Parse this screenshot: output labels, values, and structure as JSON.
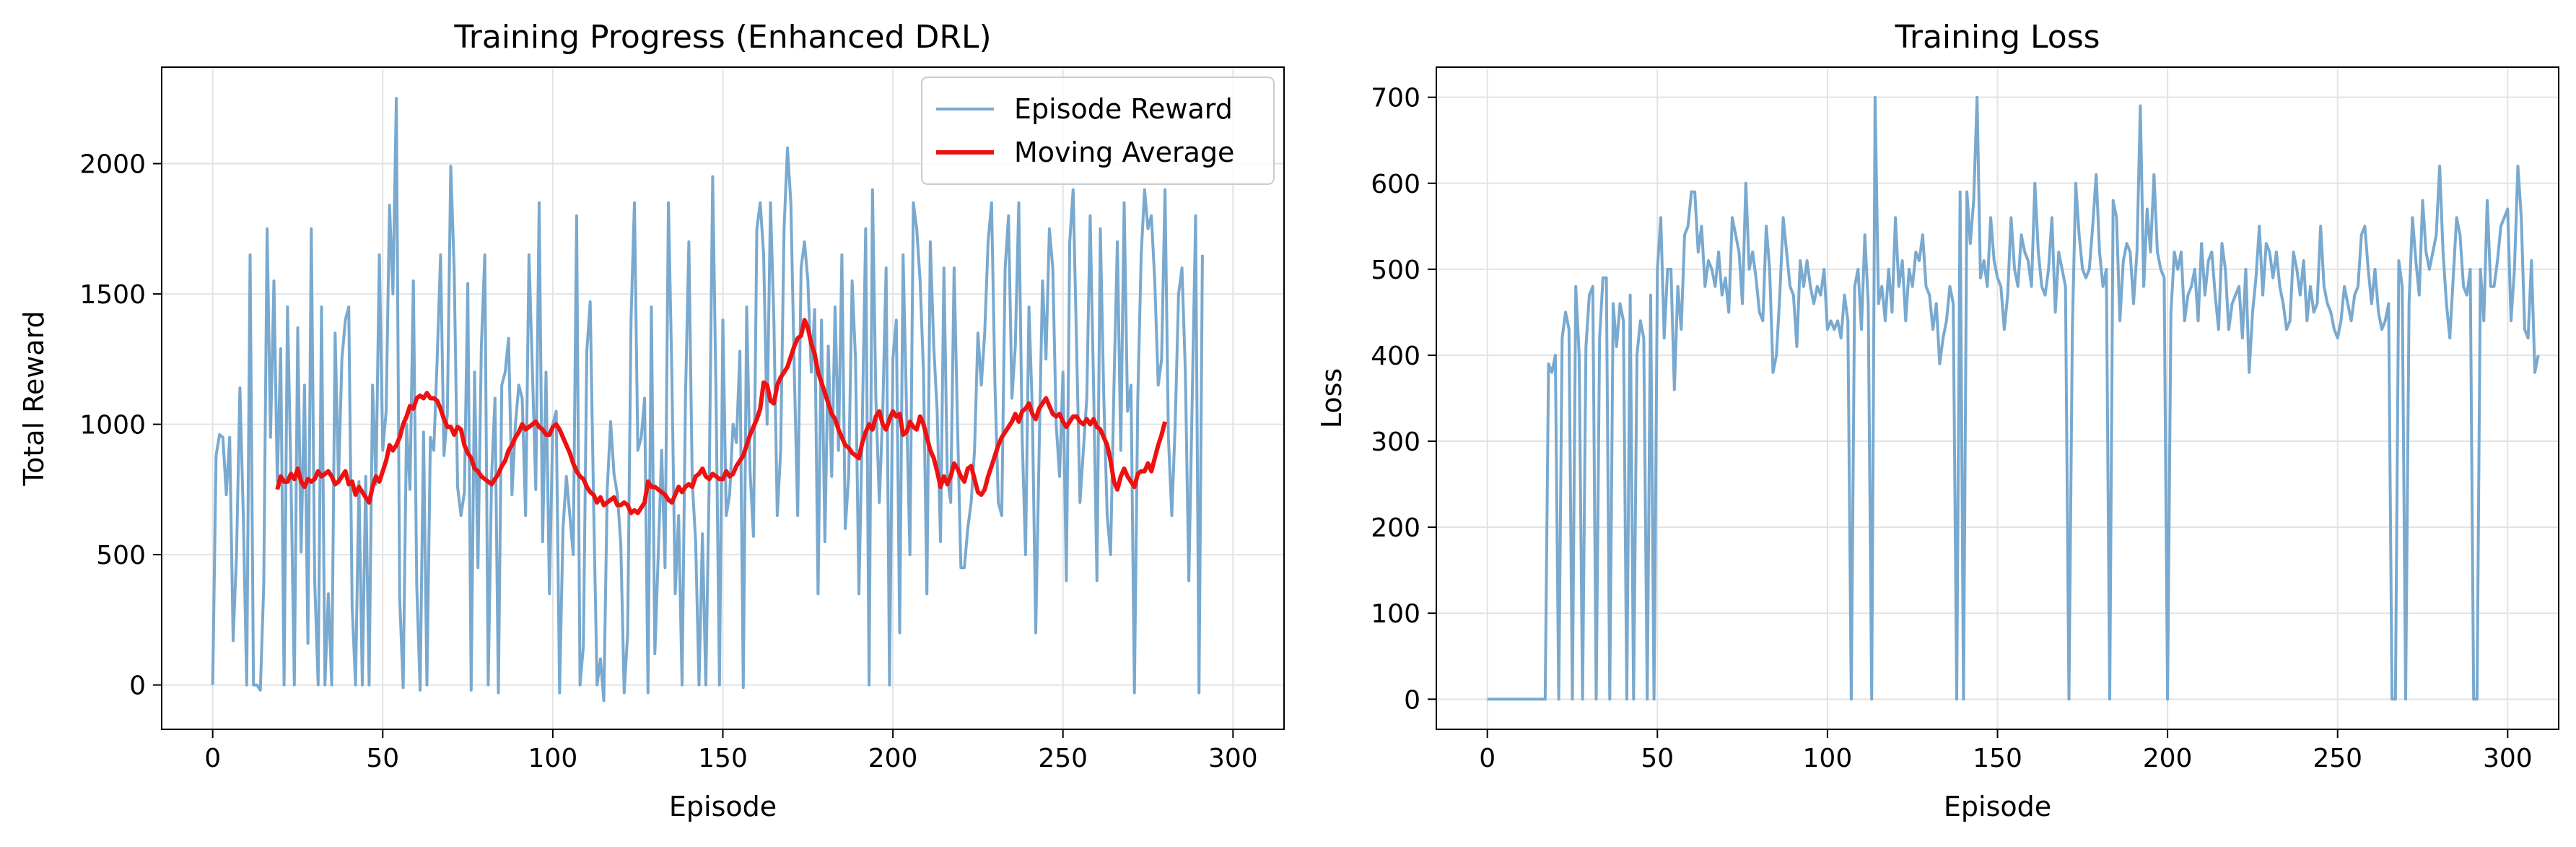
{
  "chart_data": [
    {
      "type": "line",
      "title": "Training Progress (Enhanced DRL)",
      "xlabel": "Episode",
      "ylabel": "Total Reward",
      "xlim": [
        -15,
        315
      ],
      "ylim": [
        -170,
        2370
      ],
      "xticks": [
        0,
        50,
        100,
        150,
        200,
        250,
        300
      ],
      "yticks": [
        0,
        500,
        1000,
        1500,
        2000
      ],
      "grid": true,
      "legend": "top-right",
      "series": [
        {
          "name": "Episode Reward",
          "color": "#79a9cf",
          "x_start": 0,
          "values": [
            0,
            880,
            960,
            950,
            730,
            950,
            170,
            500,
            1140,
            650,
            0,
            1650,
            0,
            0,
            -20,
            380,
            1750,
            950,
            1550,
            780,
            1290,
            0,
            1450,
            800,
            0,
            1370,
            510,
            1150,
            160,
            1750,
            400,
            0,
            1450,
            0,
            350,
            0,
            1350,
            780,
            1250,
            1400,
            1450,
            300,
            0,
            780,
            0,
            800,
            0,
            1150,
            770,
            1650,
            900,
            1050,
            1840,
            1500,
            2250,
            330,
            -10,
            1000,
            750,
            1550,
            380,
            -20,
            970,
            0,
            950,
            900,
            1250,
            1650,
            880,
            1040,
            1990,
            1600,
            760,
            650,
            740,
            1540,
            -20,
            1200,
            450,
            1300,
            1650,
            0,
            800,
            1100,
            -30,
            1150,
            1200,
            1330,
            730,
            1000,
            1150,
            1100,
            650,
            1650,
            1210,
            750,
            1850,
            550,
            1200,
            350,
            1000,
            1050,
            -30,
            600,
            800,
            650,
            500,
            1800,
            0,
            150,
            1280,
            1470,
            700,
            0,
            100,
            -60,
            750,
            1010,
            810,
            730,
            540,
            -30,
            200,
            1400,
            1850,
            900,
            950,
            1100,
            -30,
            1450,
            120,
            500,
            900,
            450,
            1850,
            1200,
            350,
            650,
            0,
            1100,
            1700,
            780,
            550,
            0,
            580,
            0,
            800,
            1950,
            1100,
            0,
            1400,
            650,
            730,
            1000,
            930,
            1280,
            -10,
            1450,
            820,
            570,
            1750,
            1850,
            1650,
            1000,
            1850,
            1400,
            650,
            900,
            1750,
            2060,
            1850,
            1200,
            650,
            1600,
            1700,
            1550,
            1200,
            1440,
            350,
            1400,
            550,
            1300,
            800,
            1450,
            900,
            1650,
            600,
            800,
            1550,
            1250,
            350,
            1000,
            1750,
            0,
            1900,
            1100,
            700,
            1050,
            1600,
            0,
            1250,
            1400,
            200,
            1650,
            1060,
            500,
            1850,
            1750,
            1550,
            1200,
            350,
            1700,
            1300,
            1050,
            550,
            1600,
            800,
            700,
            1600,
            1000,
            450,
            450,
            600,
            700,
            900,
            1350,
            1150,
            1350,
            1700,
            1850,
            1150,
            700,
            650,
            1600,
            1800,
            1100,
            1300,
            1850,
            950,
            500,
            1450,
            1050,
            200,
            900,
            1550,
            1250,
            1750,
            1600,
            1000,
            800,
            1200,
            400,
            1700,
            1900,
            1300,
            700,
            900,
            1100,
            1800,
            1150,
            400,
            1750,
            1100,
            650,
            500,
            1150,
            1700,
            900,
            1850,
            1050,
            1150,
            -30,
            1100,
            1650,
            1900,
            1750,
            1800,
            1550,
            1150,
            1250,
            1900,
            950,
            650,
            1000,
            1500,
            1600,
            1200,
            400,
            1100,
            1800,
            -30,
            1650
          ]
        },
        {
          "name": "Moving Average",
          "color": "#ee1111",
          "x_start": 19,
          "values": [
            750,
            800,
            780,
            780,
            810,
            790,
            830,
            780,
            760,
            790,
            780,
            790,
            820,
            800,
            810,
            820,
            800,
            770,
            780,
            800,
            820,
            770,
            780,
            730,
            760,
            740,
            720,
            700,
            760,
            800,
            780,
            820,
            860,
            920,
            900,
            920,
            950,
            1000,
            1030,
            1070,
            1060,
            1100,
            1110,
            1100,
            1120,
            1100,
            1100,
            1090,
            1060,
            1020,
            990,
            990,
            960,
            990,
            980,
            920,
            890,
            870,
            830,
            820,
            800,
            790,
            780,
            770,
            790,
            810,
            840,
            860,
            900,
            920,
            950,
            970,
            1000,
            980,
            990,
            1000,
            1010,
            990,
            980,
            960,
            960,
            990,
            1000,
            980,
            950,
            920,
            890,
            850,
            820,
            800,
            790,
            760,
            740,
            730,
            700,
            720,
            690,
            700,
            710,
            720,
            690,
            690,
            700,
            690,
            660,
            670,
            660,
            680,
            700,
            780,
            760,
            760,
            750,
            740,
            730,
            710,
            700,
            730,
            760,
            740,
            760,
            770,
            760,
            800,
            810,
            830,
            800,
            790,
            810,
            800,
            790,
            790,
            820,
            800,
            810,
            840,
            860,
            880,
            920,
            960,
            990,
            1020,
            1060,
            1160,
            1150,
            1090,
            1080,
            1150,
            1180,
            1200,
            1220,
            1260,
            1300,
            1330,
            1340,
            1400,
            1370,
            1310,
            1270,
            1200,
            1160,
            1120,
            1080,
            1040,
            1020,
            980,
            950,
            920,
            910,
            890,
            880,
            870,
            930,
            970,
            1000,
            980,
            1030,
            1050,
            1000,
            980,
            1020,
            1050,
            1030,
            1040,
            960,
            970,
            1010,
            990,
            980,
            1030,
            1000,
            950,
            900,
            870,
            820,
            760,
            800,
            770,
            800,
            850,
            830,
            800,
            780,
            830,
            840,
            790,
            740,
            730,
            750,
            800,
            840,
            880,
            920,
            950,
            970,
            990,
            1010,
            1040,
            1010,
            1050,
            1060,
            1080,
            1040,
            1020,
            1060,
            1080,
            1100,
            1070,
            1040,
            1030,
            1040,
            1010,
            990,
            1010,
            1030,
            1030,
            1010,
            1000,
            1020,
            1000,
            1020,
            990,
            980,
            950,
            920,
            860,
            780,
            750,
            800,
            830,
            800,
            780,
            760,
            810,
            820,
            820,
            850,
            820,
            870,
            920,
            960,
            1010
          ]
        }
      ]
    },
    {
      "type": "line",
      "title": "Training Loss",
      "xlabel": "Episode",
      "ylabel": "Loss",
      "xlim": [
        -15,
        315
      ],
      "ylim": [
        -35,
        735
      ],
      "xticks": [
        0,
        50,
        100,
        150,
        200,
        250,
        300
      ],
      "yticks": [
        0,
        100,
        200,
        300,
        400,
        500,
        600,
        700
      ],
      "grid": true,
      "series": [
        {
          "color": "#79a9cf",
          "x_start": 0,
          "values": [
            0,
            0,
            0,
            0,
            0,
            0,
            0,
            0,
            0,
            0,
            0,
            0,
            0,
            0,
            0,
            0,
            0,
            0,
            390,
            380,
            400,
            0,
            420,
            450,
            430,
            0,
            480,
            400,
            0,
            410,
            470,
            480,
            0,
            420,
            490,
            490,
            0,
            460,
            410,
            460,
            440,
            0,
            470,
            0,
            400,
            440,
            420,
            0,
            470,
            0,
            500,
            560,
            420,
            500,
            500,
            360,
            480,
            430,
            540,
            550,
            590,
            590,
            520,
            550,
            480,
            510,
            500,
            480,
            520,
            470,
            490,
            450,
            560,
            540,
            520,
            460,
            600,
            500,
            520,
            490,
            450,
            440,
            550,
            500,
            380,
            400,
            470,
            560,
            520,
            480,
            470,
            410,
            510,
            480,
            510,
            480,
            460,
            480,
            470,
            500,
            430,
            440,
            430,
            440,
            420,
            470,
            440,
            0,
            480,
            500,
            430,
            540,
            460,
            0,
            700,
            460,
            480,
            440,
            500,
            450,
            560,
            480,
            510,
            440,
            500,
            480,
            520,
            510,
            540,
            480,
            470,
            430,
            460,
            390,
            420,
            440,
            480,
            460,
            0,
            590,
            0,
            590,
            530,
            580,
            700,
            490,
            510,
            480,
            560,
            510,
            490,
            480,
            430,
            470,
            560,
            500,
            480,
            540,
            520,
            510,
            480,
            600,
            520,
            480,
            470,
            500,
            560,
            450,
            520,
            500,
            480,
            0,
            430,
            600,
            540,
            500,
            490,
            500,
            550,
            610,
            520,
            480,
            500,
            0,
            580,
            560,
            440,
            510,
            530,
            520,
            460,
            520,
            690,
            480,
            570,
            520,
            610,
            520,
            500,
            490,
            0,
            450,
            520,
            500,
            520,
            440,
            470,
            480,
            500,
            440,
            530,
            470,
            510,
            520,
            470,
            430,
            530,
            500,
            430,
            460,
            470,
            480,
            420,
            500,
            380,
            450,
            490,
            550,
            470,
            530,
            520,
            490,
            520,
            480,
            460,
            430,
            440,
            520,
            500,
            470,
            510,
            440,
            480,
            450,
            460,
            550,
            480,
            460,
            450,
            430,
            420,
            440,
            480,
            460,
            440,
            470,
            480,
            540,
            550,
            500,
            460,
            500,
            450,
            430,
            440,
            460,
            0,
            0,
            510,
            480,
            0,
            460,
            560,
            510,
            470,
            580,
            520,
            500,
            520,
            540,
            620,
            520,
            460,
            420,
            490,
            560,
            540,
            480,
            470,
            500,
            0,
            0,
            500,
            440,
            580,
            480,
            480,
            510,
            550,
            560,
            570,
            440,
            500,
            620,
            560,
            430,
            420,
            510,
            380,
            400
          ]
        }
      ]
    }
  ]
}
